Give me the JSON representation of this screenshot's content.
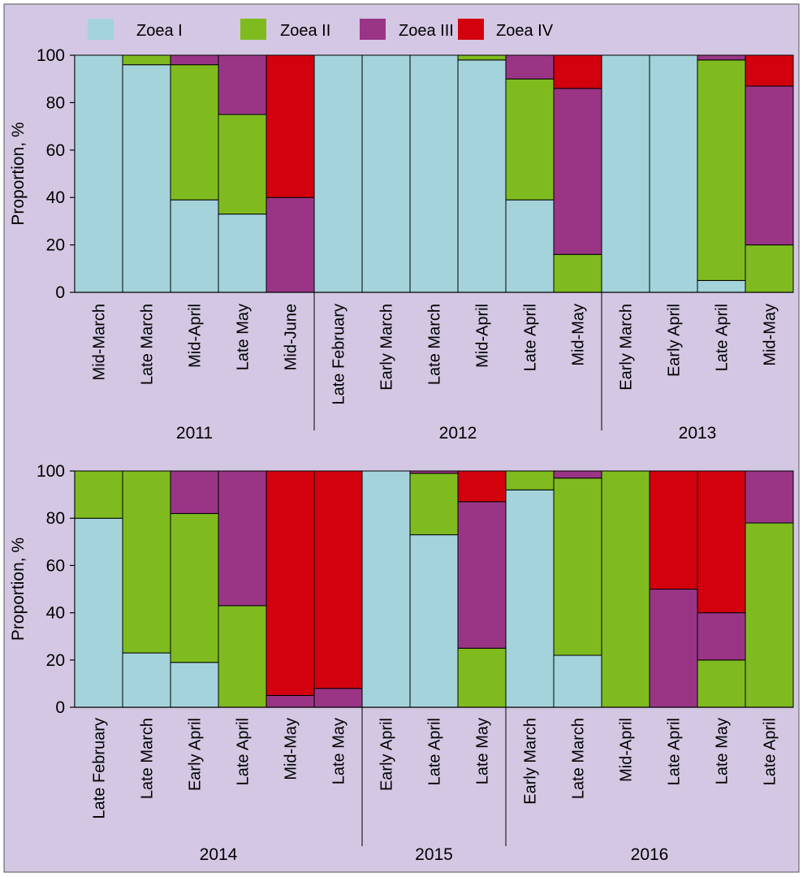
{
  "chart_data": {
    "type": "stacked-bar",
    "background_color": "#d3c7e3",
    "legend": [
      {
        "name": "Zoea I",
        "color": "#a4d3db"
      },
      {
        "name": "Zoea II",
        "color": "#7fbb1f"
      },
      {
        "name": "Zoea III",
        "color": "#9a3586"
      },
      {
        "name": "Zoea IV",
        "color": "#d3000e"
      }
    ],
    "ylabel": "Proportion, %",
    "ylim": [
      0,
      100
    ],
    "yticks": [
      0,
      20,
      40,
      60,
      80,
      100
    ],
    "panels": [
      {
        "groups": [
          {
            "year": "2011",
            "bars": [
              {
                "label": "Mid-March",
                "values": [
                  100,
                  0,
                  0,
                  0
                ]
              },
              {
                "label": "Late March",
                "values": [
                  96,
                  4,
                  0,
                  0
                ]
              },
              {
                "label": "Mid-April",
                "values": [
                  39,
                  57,
                  4,
                  0
                ]
              },
              {
                "label": "Late May",
                "values": [
                  33,
                  42,
                  25,
                  0
                ]
              },
              {
                "label": "Mid-June",
                "values": [
                  0,
                  0,
                  40,
                  60
                ]
              }
            ]
          },
          {
            "year": "2012",
            "bars": [
              {
                "label": "Late February",
                "values": [
                  100,
                  0,
                  0,
                  0
                ]
              },
              {
                "label": "Early March",
                "values": [
                  100,
                  0,
                  0,
                  0
                ]
              },
              {
                "label": "Late March",
                "values": [
                  100,
                  0,
                  0,
                  0
                ]
              },
              {
                "label": "Mid-April",
                "values": [
                  98,
                  2,
                  0,
                  0
                ]
              },
              {
                "label": "Late April",
                "values": [
                  39,
                  51,
                  10,
                  0
                ]
              },
              {
                "label": "Mid-May",
                "values": [
                  0,
                  16,
                  70,
                  14
                ]
              }
            ]
          },
          {
            "year": "2013",
            "bars": [
              {
                "label": "Early March",
                "values": [
                  100,
                  0,
                  0,
                  0
                ]
              },
              {
                "label": "Early April",
                "values": [
                  100,
                  0,
                  0,
                  0
                ]
              },
              {
                "label": "Late April",
                "values": [
                  5,
                  93,
                  2,
                  0
                ]
              },
              {
                "label": "Mid-May",
                "values": [
                  0,
                  20,
                  67,
                  13
                ]
              }
            ]
          }
        ]
      },
      {
        "groups": [
          {
            "year": "2014",
            "bars": [
              {
                "label": "Late February",
                "values": [
                  80,
                  20,
                  0,
                  0
                ]
              },
              {
                "label": "Late March",
                "values": [
                  23,
                  77,
                  0,
                  0
                ]
              },
              {
                "label": "Early April",
                "values": [
                  19,
                  63,
                  18,
                  0
                ]
              },
              {
                "label": "Late April",
                "values": [
                  0,
                  43,
                  57,
                  0
                ]
              },
              {
                "label": "Mid-May",
                "values": [
                  0,
                  0,
                  5,
                  95
                ]
              },
              {
                "label": "Late May",
                "values": [
                  0,
                  0,
                  8,
                  92
                ]
              }
            ]
          },
          {
            "year": "2015",
            "bars": [
              {
                "label": "Early April",
                "values": [
                  100,
                  0,
                  0,
                  0
                ]
              },
              {
                "label": "Late April",
                "values": [
                  73,
                  26,
                  1,
                  0
                ]
              },
              {
                "label": "Late May",
                "values": [
                  0,
                  25,
                  62,
                  13
                ]
              }
            ]
          },
          {
            "year": "2016",
            "bars": [
              {
                "label": "Early March",
                "values": [
                  92,
                  8,
                  0,
                  0
                ]
              },
              {
                "label": "Late March",
                "values": [
                  22,
                  75,
                  3,
                  0
                ]
              },
              {
                "label": "Mid-April",
                "values": [
                  0,
                  100,
                  0,
                  0
                ]
              },
              {
                "label": "Late April",
                "values": [
                  0,
                  0,
                  50,
                  50
                ]
              },
              {
                "label": "Late May",
                "values": [
                  0,
                  20,
                  20,
                  60
                ]
              },
              {
                "label": "Late April",
                "values": [
                  0,
                  78,
                  22,
                  0
                ]
              }
            ]
          }
        ]
      }
    ]
  }
}
